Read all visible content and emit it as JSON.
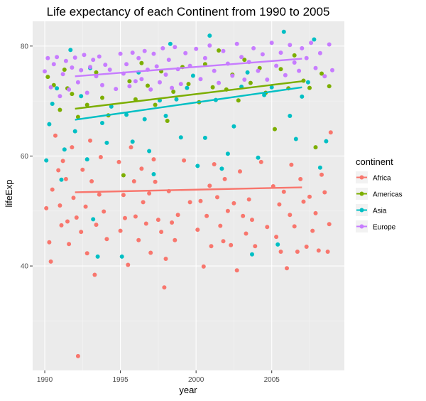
{
  "chart_data": {
    "type": "scatter",
    "title": "Life expectancy of each Continent from 1990 to 2005",
    "xlabel": "year",
    "ylabel": "lifeExp",
    "xlim": [
      1989.2,
      2009.8
    ],
    "ylim": [
      21,
      84.5
    ],
    "x_ticks": [
      1990,
      1995,
      2000,
      2005
    ],
    "y_ticks": [
      40,
      60,
      80
    ],
    "x_tick_labels": [
      "1990",
      "1995",
      "2000",
      "2005"
    ],
    "y_tick_labels": [
      "40",
      "60",
      "80"
    ],
    "grid": true,
    "legend": {
      "title": "continent",
      "position": "right"
    },
    "series": [
      {
        "name": "Africa",
        "color": "#f8766d",
        "trend": {
          "x": [
            1992,
            2007
          ],
          "y": [
            53.4,
            54.3
          ]
        },
        "points": [
          [
            1990.1,
            50.5
          ],
          [
            1990.3,
            44.3
          ],
          [
            1990.4,
            40.8
          ],
          [
            1990.5,
            53.9
          ],
          [
            1990.7,
            63.7
          ],
          [
            1990.9,
            57.4
          ],
          [
            1991.0,
            51.0
          ],
          [
            1991.1,
            47.4
          ],
          [
            1991.2,
            59.1
          ],
          [
            1991.4,
            55.8
          ],
          [
            1991.5,
            48.1
          ],
          [
            1991.6,
            44.0
          ],
          [
            1991.8,
            61.6
          ],
          [
            1991.9,
            52.4
          ],
          [
            1992.1,
            48.8
          ],
          [
            1992.2,
            23.6
          ],
          [
            1992.4,
            46.2
          ],
          [
            1992.5,
            57.5
          ],
          [
            1992.7,
            50.8
          ],
          [
            1992.8,
            42.3
          ],
          [
            1993.0,
            62.8
          ],
          [
            1993.1,
            55.4
          ],
          [
            1993.3,
            38.4
          ],
          [
            1993.4,
            47.5
          ],
          [
            1993.6,
            53.0
          ],
          [
            1993.7,
            59.8
          ],
          [
            1993.9,
            49.9
          ],
          [
            1994.1,
            44.9
          ],
          [
            1994.9,
            58.9
          ],
          [
            1995.0,
            46.4
          ],
          [
            1995.2,
            52.9
          ],
          [
            1995.3,
            48.7
          ],
          [
            1995.5,
            40.2
          ],
          [
            1995.7,
            61.6
          ],
          [
            1995.9,
            55.4
          ],
          [
            1996.0,
            49.0
          ],
          [
            1996.2,
            44.7
          ],
          [
            1996.4,
            57.7
          ],
          [
            1996.5,
            51.6
          ],
          [
            1996.7,
            47.7
          ],
          [
            1996.9,
            53.2
          ],
          [
            1997.0,
            42.4
          ],
          [
            1997.2,
            59.4
          ],
          [
            1997.3,
            55.3
          ],
          [
            1997.5,
            48.4
          ],
          [
            1997.7,
            46.2
          ],
          [
            1997.9,
            36.1
          ],
          [
            1998.0,
            41.3
          ],
          [
            1998.2,
            53.6
          ],
          [
            1998.4,
            47.9
          ],
          [
            1998.6,
            44.7
          ],
          [
            1998.8,
            49.3
          ],
          [
            1999.2,
            59.2
          ],
          [
            1999.6,
            51.6
          ],
          [
            2000.1,
            46.6
          ],
          [
            2000.3,
            51.8
          ],
          [
            2000.5,
            39.9
          ],
          [
            2000.7,
            49.1
          ],
          [
            2000.9,
            54.6
          ],
          [
            2001.0,
            43.6
          ],
          [
            2001.2,
            58.5
          ],
          [
            2001.4,
            52.5
          ],
          [
            2001.6,
            47.3
          ],
          [
            2001.8,
            44.5
          ],
          [
            2001.9,
            55.8
          ],
          [
            2002.1,
            50.0
          ],
          [
            2002.3,
            43.8
          ],
          [
            2002.5,
            51.4
          ],
          [
            2002.7,
            39.2
          ],
          [
            2002.9,
            57.2
          ],
          [
            2003.1,
            49.1
          ],
          [
            2003.3,
            45.9
          ],
          [
            2003.5,
            52.1
          ],
          [
            2003.7,
            48.4
          ],
          [
            2003.9,
            43.6
          ],
          [
            2004.3,
            58.9
          ],
          [
            2004.7,
            47.1
          ],
          [
            2005.1,
            54.5
          ],
          [
            2005.3,
            45.3
          ],
          [
            2005.5,
            51.2
          ],
          [
            2005.6,
            42.6
          ],
          [
            2005.8,
            53.5
          ],
          [
            2006.0,
            39.6
          ],
          [
            2006.2,
            49.3
          ],
          [
            2006.3,
            58.4
          ],
          [
            2006.5,
            47.2
          ],
          [
            2006.7,
            42.6
          ],
          [
            2006.9,
            55.8
          ],
          [
            2007.1,
            51.7
          ],
          [
            2007.3,
            43.5
          ],
          [
            2007.5,
            52.6
          ],
          [
            2007.7,
            46.4
          ],
          [
            2007.9,
            49.6
          ],
          [
            2008.1,
            42.8
          ],
          [
            2008.3,
            56.6
          ],
          [
            2008.5,
            53.4
          ],
          [
            2008.7,
            42.6
          ],
          [
            2008.8,
            47.6
          ],
          [
            2008.9,
            64.3
          ]
        ]
      },
      {
        "name": "Americas",
        "color": "#7cae00",
        "trend": {
          "x": [
            1992,
            2007
          ],
          "y": [
            68.6,
            73.6
          ]
        },
        "points": [
          [
            1990.2,
            74.4
          ],
          [
            1990.6,
            72.9
          ],
          [
            1991.0,
            68.4
          ],
          [
            1991.3,
            75.7
          ],
          [
            1991.5,
            72.3
          ],
          [
            1991.8,
            71.3
          ],
          [
            1992.2,
            67.1
          ],
          [
            1992.8,
            69.3
          ],
          [
            1993.4,
            75.2
          ],
          [
            1993.8,
            70.6
          ],
          [
            1994.2,
            67.4
          ],
          [
            1995.2,
            56.5
          ],
          [
            1995.6,
            73.6
          ],
          [
            1996.0,
            70.3
          ],
          [
            1996.4,
            76.9
          ],
          [
            1996.8,
            72.8
          ],
          [
            1997.3,
            69.3
          ],
          [
            1997.7,
            75.4
          ],
          [
            1998.1,
            66.4
          ],
          [
            1998.5,
            71.7
          ],
          [
            1999.1,
            76.2
          ],
          [
            1999.5,
            73.1
          ],
          [
            2000.2,
            69.8
          ],
          [
            2000.6,
            76.7
          ],
          [
            2001.1,
            72.5
          ],
          [
            2001.5,
            79.2
          ],
          [
            2002.0,
            72.1
          ],
          [
            2002.4,
            74.8
          ],
          [
            2002.8,
            70.1
          ],
          [
            2003.2,
            77.5
          ],
          [
            2003.6,
            73.3
          ],
          [
            2004.2,
            76.0
          ],
          [
            2004.6,
            71.5
          ],
          [
            2005.2,
            64.9
          ],
          [
            2005.6,
            75.8
          ],
          [
            2006.1,
            72.3
          ],
          [
            2006.5,
            78.3
          ],
          [
            2007.1,
            73.7
          ],
          [
            2007.5,
            72.4
          ],
          [
            2007.9,
            61.6
          ],
          [
            2008.3,
            75.0
          ],
          [
            2008.8,
            72.7
          ]
        ]
      },
      {
        "name": "Asia",
        "color": "#00bfc4",
        "trend": {
          "x": [
            1992,
            2007
          ],
          "y": [
            66.6,
            72.5
          ]
        },
        "points": [
          [
            1990.1,
            59.2
          ],
          [
            1990.3,
            65.8
          ],
          [
            1990.5,
            69.5
          ],
          [
            1990.8,
            72.3
          ],
          [
            1991.1,
            55.7
          ],
          [
            1991.3,
            61.2
          ],
          [
            1991.7,
            79.3
          ],
          [
            1992.0,
            64.5
          ],
          [
            1992.4,
            70.9
          ],
          [
            1992.8,
            59.4
          ],
          [
            1993.0,
            76.0
          ],
          [
            1993.2,
            48.5
          ],
          [
            1993.5,
            41.7
          ],
          [
            1993.8,
            66.0
          ],
          [
            1994.1,
            62.4
          ],
          [
            1994.4,
            69.0
          ],
          [
            1995.1,
            41.7
          ],
          [
            1995.4,
            67.5
          ],
          [
            1995.8,
            62.6
          ],
          [
            1996.2,
            75.2
          ],
          [
            1996.6,
            66.7
          ],
          [
            1996.9,
            60.9
          ],
          [
            1997.2,
            56.7
          ],
          [
            1997.6,
            70.1
          ],
          [
            1998.0,
            67.3
          ],
          [
            1998.3,
            80.4
          ],
          [
            1998.7,
            70.3
          ],
          [
            1999.0,
            63.4
          ],
          [
            1999.4,
            72.4
          ],
          [
            1999.8,
            74.6
          ],
          [
            2000.1,
            58.2
          ],
          [
            2000.6,
            63.3
          ],
          [
            2000.9,
            81.9
          ],
          [
            2001.3,
            70.2
          ],
          [
            2001.7,
            57.7
          ],
          [
            2002.1,
            60.4
          ],
          [
            2002.5,
            65.4
          ],
          [
            2003.0,
            72.6
          ],
          [
            2003.4,
            75.2
          ],
          [
            2003.7,
            42.1
          ],
          [
            2004.1,
            59.7
          ],
          [
            2004.5,
            71.1
          ],
          [
            2005.0,
            72.5
          ],
          [
            2005.4,
            43.9
          ],
          [
            2005.8,
            82.6
          ],
          [
            2006.2,
            67.3
          ],
          [
            2006.6,
            63.1
          ],
          [
            2007.0,
            70.8
          ],
          [
            2007.4,
            73.4
          ],
          [
            2007.8,
            81.2
          ],
          [
            2008.2,
            57.9
          ],
          [
            2008.6,
            62.7
          ]
        ]
      },
      {
        "name": "Europe",
        "color": "#c77cff",
        "trend": {
          "x": [
            1992,
            2007
          ],
          "y": [
            74.5,
            77.7
          ]
        },
        "points": [
          [
            1990.0,
            75.4
          ],
          [
            1990.2,
            77.8
          ],
          [
            1990.4,
            72.5
          ],
          [
            1990.6,
            76.7
          ],
          [
            1990.8,
            78.0
          ],
          [
            1991.0,
            70.9
          ],
          [
            1991.2,
            74.9
          ],
          [
            1991.4,
            77.3
          ],
          [
            1991.6,
            72.1
          ],
          [
            1991.8,
            76.1
          ],
          [
            1992.0,
            77.9
          ],
          [
            1992.2,
            73.4
          ],
          [
            1992.4,
            75.6
          ],
          [
            1992.6,
            78.4
          ],
          [
            1992.8,
            71.5
          ],
          [
            1993.0,
            76.2
          ],
          [
            1993.2,
            77.5
          ],
          [
            1993.4,
            74.5
          ],
          [
            1993.6,
            78.1
          ],
          [
            1993.8,
            72.9
          ],
          [
            1994.0,
            76.6
          ],
          [
            1994.3,
            75.7
          ],
          [
            1994.7,
            72.2
          ],
          [
            1995.0,
            78.6
          ],
          [
            1995.2,
            75.0
          ],
          [
            1995.4,
            76.7
          ],
          [
            1995.6,
            72.7
          ],
          [
            1995.8,
            78.8
          ],
          [
            1996.0,
            73.6
          ],
          [
            1996.2,
            77.8
          ],
          [
            1996.4,
            74.0
          ],
          [
            1996.6,
            79.1
          ],
          [
            1996.8,
            75.7
          ],
          [
            1997.0,
            72.1
          ],
          [
            1997.2,
            78.6
          ],
          [
            1997.4,
            76.3
          ],
          [
            1997.6,
            73.4
          ],
          [
            1997.8,
            79.6
          ],
          [
            1998.0,
            74.8
          ],
          [
            1998.2,
            77.5
          ],
          [
            1998.4,
            72.4
          ],
          [
            1998.6,
            79.8
          ],
          [
            1998.8,
            75.8
          ],
          [
            1999.0,
            73.1
          ],
          [
            1999.3,
            78.7
          ],
          [
            1999.6,
            76.4
          ],
          [
            2000.0,
            79.5
          ],
          [
            2000.3,
            74.0
          ],
          [
            2000.6,
            77.8
          ],
          [
            2000.9,
            80.1
          ],
          [
            2001.2,
            75.5
          ],
          [
            2001.5,
            73.3
          ],
          [
            2001.8,
            79.1
          ],
          [
            2002.1,
            76.8
          ],
          [
            2002.4,
            74.6
          ],
          [
            2002.7,
            80.4
          ],
          [
            2003.0,
            78.0
          ],
          [
            2003.2,
            73.9
          ],
          [
            2003.5,
            77.1
          ],
          [
            2003.8,
            79.6
          ],
          [
            2004.1,
            75.5
          ],
          [
            2004.4,
            78.5
          ],
          [
            2004.7,
            73.9
          ],
          [
            2005.0,
            80.6
          ],
          [
            2005.3,
            76.4
          ],
          [
            2005.6,
            78.8
          ],
          [
            2005.9,
            74.7
          ],
          [
            2006.2,
            80.2
          ],
          [
            2006.5,
            77.0
          ],
          [
            2006.8,
            75.5
          ],
          [
            2007.0,
            79.6
          ],
          [
            2007.3,
            77.8
          ],
          [
            2007.6,
            80.6
          ],
          [
            2007.9,
            76.0
          ],
          [
            2008.2,
            78.7
          ],
          [
            2008.5,
            74.5
          ],
          [
            2008.8,
            80.3
          ],
          [
            2009.0,
            75.6
          ]
        ]
      }
    ]
  }
}
